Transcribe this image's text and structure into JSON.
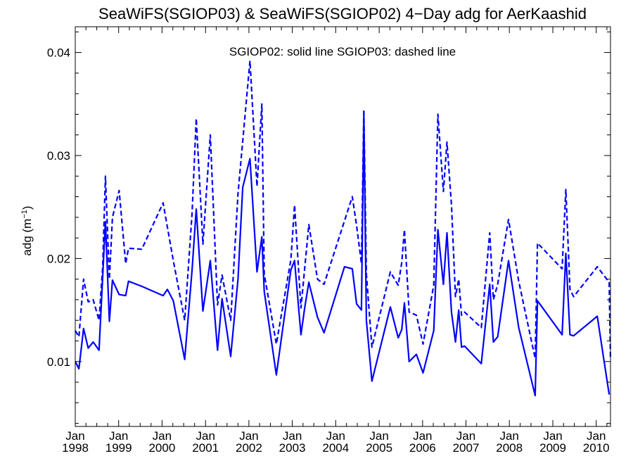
{
  "chart_data": {
    "type": "line",
    "title": "SeaWiFS(SGIOP03) & SeaWiFS(SGIOP02) 4−Day adg for AerKaashid",
    "ylabel_main": "adg (m",
    "ylabel_sup": "−1",
    "ylabel_close": ")",
    "annotation": "SGIOP02: solid line   SGIOP03: dashed line",
    "xlim": [
      "1998-01-01",
      "2010-05-01"
    ],
    "ylim": [
      0.0037,
      0.0425
    ],
    "yticks": [
      {
        "value": 0.01,
        "label": "0.01"
      },
      {
        "value": 0.02,
        "label": "0.02"
      },
      {
        "value": 0.03,
        "label": "0.03"
      },
      {
        "value": 0.04,
        "label": "0.04"
      }
    ],
    "xticks": [
      {
        "date": "1998-01-01",
        "month": "Jan",
        "year": "1998"
      },
      {
        "date": "1999-01-01",
        "month": "Jan",
        "year": "1999"
      },
      {
        "date": "2000-01-01",
        "month": "Jan",
        "year": "2000"
      },
      {
        "date": "2001-01-01",
        "month": "Jan",
        "year": "2001"
      },
      {
        "date": "2002-01-01",
        "month": "Jan",
        "year": "2002"
      },
      {
        "date": "2003-01-01",
        "month": "Jan",
        "year": "2003"
      },
      {
        "date": "2004-01-01",
        "month": "Jan",
        "year": "2004"
      },
      {
        "date": "2005-01-01",
        "month": "Jan",
        "year": "2005"
      },
      {
        "date": "2006-01-01",
        "month": "Jan",
        "year": "2006"
      },
      {
        "date": "2007-01-01",
        "month": "Jan",
        "year": "2007"
      },
      {
        "date": "2008-01-01",
        "month": "Jan",
        "year": "2008"
      },
      {
        "date": "2009-01-01",
        "month": "Jan",
        "year": "2009"
      },
      {
        "date": "2010-01-01",
        "month": "Jan",
        "year": "2010"
      }
    ],
    "series": [
      {
        "style": "solid",
        "color": "#0000ff",
        "points": [
          [
            "1998-01-01",
            0.01
          ],
          [
            "1998-02-01",
            0.0093
          ],
          [
            "1998-03-12",
            0.0132
          ],
          [
            "1998-04-20",
            0.0113
          ],
          [
            "1998-06-01",
            0.0119
          ],
          [
            "1998-07-20",
            0.0111
          ],
          [
            "1998-09-12",
            0.0236
          ],
          [
            "1998-10-15",
            0.0139
          ],
          [
            "1998-11-10",
            0.0179
          ],
          [
            "1999-01-05",
            0.0165
          ],
          [
            "1999-03-01",
            0.0164
          ],
          [
            "1999-03-25",
            0.0178
          ],
          [
            "1999-07-15",
            0.0173
          ],
          [
            "2000-01-10",
            0.0164
          ],
          [
            "2000-02-15",
            0.017
          ],
          [
            "2000-04-05",
            0.0159
          ],
          [
            "2000-07-10",
            0.0102
          ],
          [
            "2000-09-10",
            0.0189
          ],
          [
            "2000-10-15",
            0.0248
          ],
          [
            "2000-12-10",
            0.0149
          ],
          [
            "2001-02-10",
            0.0198
          ],
          [
            "2001-04-12",
            0.0111
          ],
          [
            "2001-05-20",
            0.0161
          ],
          [
            "2001-08-01",
            0.0105
          ],
          [
            "2001-10-01",
            0.018
          ],
          [
            "2001-11-10",
            0.0269
          ],
          [
            "2002-01-10",
            0.0297
          ],
          [
            "2002-03-10",
            0.0187
          ],
          [
            "2002-04-20",
            0.0221
          ],
          [
            "2002-05-10",
            0.0168
          ],
          [
            "2002-08-20",
            0.0087
          ],
          [
            "2002-10-15",
            0.0134
          ],
          [
            "2002-12-20",
            0.0189
          ],
          [
            "2003-01-20",
            0.0198
          ],
          [
            "2003-03-15",
            0.0126
          ],
          [
            "2003-04-15",
            0.0152
          ],
          [
            "2003-05-20",
            0.0177
          ],
          [
            "2003-08-01",
            0.0143
          ],
          [
            "2003-09-25",
            0.0128
          ],
          [
            "2004-03-15",
            0.0192
          ],
          [
            "2004-05-20",
            0.019
          ],
          [
            "2004-06-25",
            0.0156
          ],
          [
            "2004-08-05",
            0.015
          ],
          [
            "2004-08-25",
            0.034
          ],
          [
            "2004-09-15",
            0.014
          ],
          [
            "2004-11-01",
            0.0081
          ],
          [
            "2005-04-05",
            0.0153
          ],
          [
            "2005-06-10",
            0.0123
          ],
          [
            "2005-07-10",
            0.0131
          ],
          [
            "2005-08-01",
            0.0157
          ],
          [
            "2005-09-10",
            0.01
          ],
          [
            "2005-11-10",
            0.0107
          ],
          [
            "2006-01-05",
            0.0089
          ],
          [
            "2006-04-05",
            0.013
          ],
          [
            "2006-05-10",
            0.0228
          ],
          [
            "2006-06-25",
            0.0175
          ],
          [
            "2006-07-25",
            0.0225
          ],
          [
            "2006-09-01",
            0.0148
          ],
          [
            "2006-10-05",
            0.0119
          ],
          [
            "2006-11-01",
            0.015
          ],
          [
            "2006-11-25",
            0.0114
          ],
          [
            "2006-12-20",
            0.0115
          ],
          [
            "2007-05-10",
            0.0098
          ],
          [
            "2007-07-20",
            0.0175
          ],
          [
            "2007-08-20",
            0.0119
          ],
          [
            "2007-09-25",
            0.0124
          ],
          [
            "2007-12-25",
            0.0198
          ],
          [
            "2008-03-20",
            0.0133
          ],
          [
            "2008-08-05",
            0.0067
          ],
          [
            "2008-08-25",
            0.0159
          ],
          [
            "2009-03-20",
            0.0126
          ],
          [
            "2009-04-20",
            0.0205
          ],
          [
            "2009-05-25",
            0.0126
          ],
          [
            "2009-06-25",
            0.0125
          ],
          [
            "2010-01-10",
            0.0144
          ],
          [
            "2010-04-20",
            0.0068
          ]
        ]
      },
      {
        "style": "dashed",
        "color": "#0000ff",
        "points": [
          [
            "1998-01-01",
            0.013
          ],
          [
            "1998-02-01",
            0.0124
          ],
          [
            "1998-03-12",
            0.018
          ],
          [
            "1998-04-20",
            0.0158
          ],
          [
            "1998-06-01",
            0.016
          ],
          [
            "1998-07-20",
            0.014
          ],
          [
            "1998-08-20",
            0.0192
          ],
          [
            "1998-09-12",
            0.028
          ],
          [
            "1998-10-15",
            0.018
          ],
          [
            "1998-11-10",
            0.024
          ],
          [
            "1999-01-05",
            0.0266
          ],
          [
            "1999-03-01",
            0.0195
          ],
          [
            "1999-03-25",
            0.021
          ],
          [
            "1999-07-15",
            0.0209
          ],
          [
            "2000-01-10",
            0.0254
          ],
          [
            "2000-04-05",
            0.0198
          ],
          [
            "2000-07-10",
            0.014
          ],
          [
            "2000-09-10",
            0.0244
          ],
          [
            "2000-10-15",
            0.0336
          ],
          [
            "2000-12-10",
            0.0214
          ],
          [
            "2001-02-10",
            0.032
          ],
          [
            "2001-04-12",
            0.0155
          ],
          [
            "2001-05-20",
            0.0184
          ],
          [
            "2001-08-01",
            0.014
          ],
          [
            "2001-10-01",
            0.0263
          ],
          [
            "2002-01-10",
            0.0392
          ],
          [
            "2002-03-10",
            0.027
          ],
          [
            "2002-04-20",
            0.035
          ],
          [
            "2002-05-10",
            0.0185
          ],
          [
            "2002-08-20",
            0.0117
          ],
          [
            "2002-12-20",
            0.0199
          ],
          [
            "2003-01-20",
            0.0252
          ],
          [
            "2003-03-15",
            0.0152
          ],
          [
            "2003-05-20",
            0.0233
          ],
          [
            "2003-08-01",
            0.018
          ],
          [
            "2003-09-25",
            0.0175
          ],
          [
            "2004-05-20",
            0.026
          ],
          [
            "2004-06-25",
            0.0232
          ],
          [
            "2004-08-05",
            0.0195
          ],
          [
            "2004-08-25",
            0.0345
          ],
          [
            "2004-09-15",
            0.0185
          ],
          [
            "2004-11-01",
            0.0114
          ],
          [
            "2005-04-05",
            0.0187
          ],
          [
            "2005-06-10",
            0.0174
          ],
          [
            "2005-07-10",
            0.0196
          ],
          [
            "2005-08-01",
            0.0228
          ],
          [
            "2005-09-10",
            0.0148
          ],
          [
            "2005-11-10",
            0.0145
          ],
          [
            "2006-01-05",
            0.0117
          ],
          [
            "2006-04-05",
            0.0174
          ],
          [
            "2006-05-10",
            0.034
          ],
          [
            "2006-06-25",
            0.0265
          ],
          [
            "2006-07-25",
            0.0313
          ],
          [
            "2006-09-01",
            0.0252
          ],
          [
            "2006-10-05",
            0.0163
          ],
          [
            "2006-11-01",
            0.018
          ],
          [
            "2006-11-25",
            0.0145
          ],
          [
            "2006-12-20",
            0.0148
          ],
          [
            "2007-05-10",
            0.0133
          ],
          [
            "2007-07-20",
            0.0225
          ],
          [
            "2007-08-20",
            0.016
          ],
          [
            "2007-09-25",
            0.0175
          ],
          [
            "2007-12-25",
            0.0238
          ],
          [
            "2008-03-20",
            0.0178
          ],
          [
            "2008-08-05",
            0.0103
          ],
          [
            "2008-08-25",
            0.0215
          ],
          [
            "2009-03-20",
            0.019
          ],
          [
            "2009-04-20",
            0.0267
          ],
          [
            "2009-05-25",
            0.017
          ],
          [
            "2009-06-25",
            0.0163
          ],
          [
            "2010-01-10",
            0.0192
          ],
          [
            "2010-04-20",
            0.0177
          ],
          [
            "2010-05-01",
            0.0102
          ]
        ]
      }
    ]
  }
}
